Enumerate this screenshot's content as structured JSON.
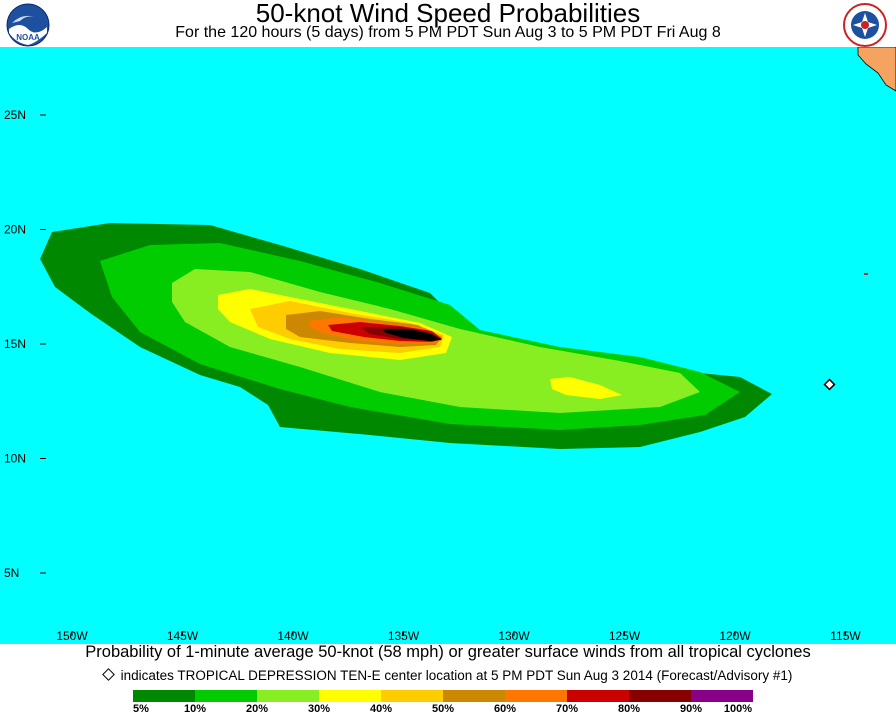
{
  "header": {
    "title": "50-knot Wind Speed Probabilities",
    "subtitle": "For the 120 hours (5 days) from 5 PM PDT Sun Aug 3 to 5 PM PDT Fri Aug 8"
  },
  "logos": {
    "left": {
      "name": "noaa-logo",
      "text": "NOAA"
    },
    "right": {
      "name": "nws-logo",
      "text": "NATIONAL WEATHER SERVICE"
    }
  },
  "map": {
    "ocean_color": "#00FFFF",
    "land_color": "#F4A460",
    "lon_labels": [
      "150W",
      "145W",
      "140W",
      "135W",
      "130W",
      "125W",
      "120W",
      "115W"
    ],
    "lat_labels": [
      "25N",
      "20N",
      "15N",
      "10N",
      "5N"
    ],
    "storm_center": {
      "lon": -116,
      "lat": 13.5
    }
  },
  "caption": "Probability of 1-minute average 50-knot (58 mph) or greater surface winds from all tropical cyclones",
  "marker_note": "indicates TROPICAL DEPRESSION TEN-E center location at 5 PM PDT Sun Aug 3 2014 (Forecast/Advisory #1)",
  "legend": {
    "colors": [
      "#008800",
      "#00CC00",
      "#88EE22",
      "#FFFF00",
      "#FFCC00",
      "#CC8800",
      "#FF7700",
      "#CC0000",
      "#880000",
      "#880088"
    ],
    "labels": [
      "5%",
      "10%",
      "20%",
      "30%",
      "40%",
      "50%",
      "60%",
      "70%",
      "80%",
      "90%",
      "100%"
    ]
  }
}
